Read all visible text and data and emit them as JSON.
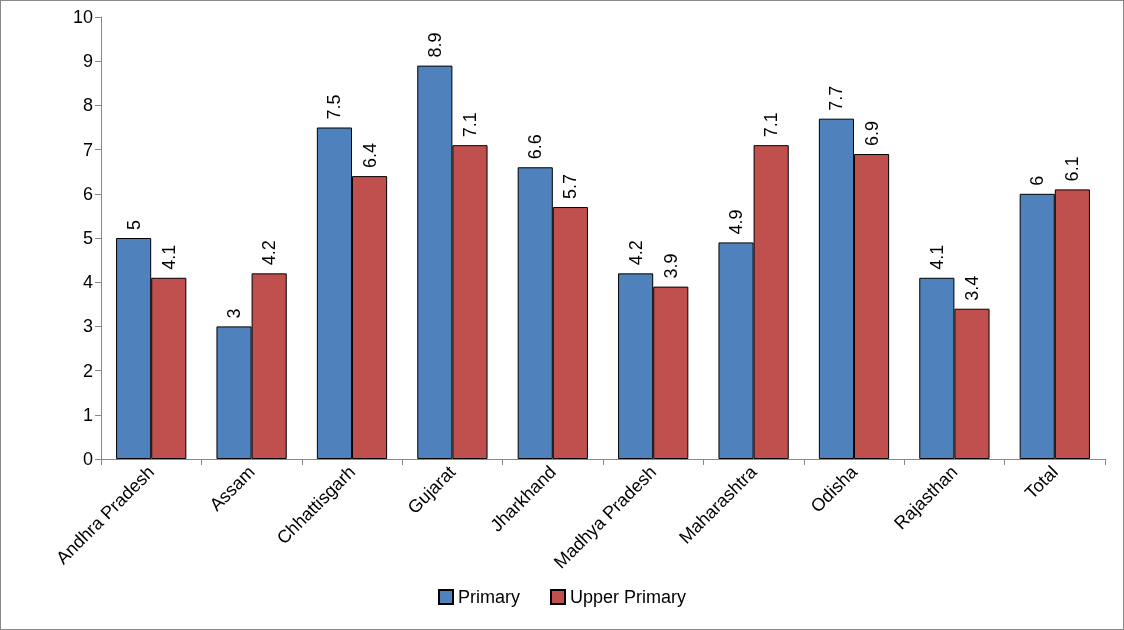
{
  "chart_data": {
    "type": "bar",
    "categories": [
      "Andhra Pradesh",
      "Assam",
      "Chhattisgarh",
      "Gujarat",
      "Jharkhand",
      "Madhya Pradesh",
      "Maharashtra",
      "Odisha",
      "Rajasthan",
      "Total"
    ],
    "series": [
      {
        "name": "Primary",
        "color": "#4f81bd",
        "values": [
          5,
          3,
          7.5,
          8.9,
          6.6,
          4.2,
          4.9,
          7.7,
          4.1,
          6
        ]
      },
      {
        "name": "Upper Primary",
        "color": "#c0504d",
        "values": [
          4.1,
          4.2,
          6.4,
          7.1,
          5.7,
          3.9,
          7.1,
          6.9,
          3.4,
          6.1
        ]
      }
    ],
    "ylim": [
      0,
      10
    ],
    "yticks": [
      0,
      1,
      2,
      3,
      4,
      5,
      6,
      7,
      8,
      9,
      10
    ],
    "grid": false,
    "legend": "bottom",
    "data_labels": true
  }
}
